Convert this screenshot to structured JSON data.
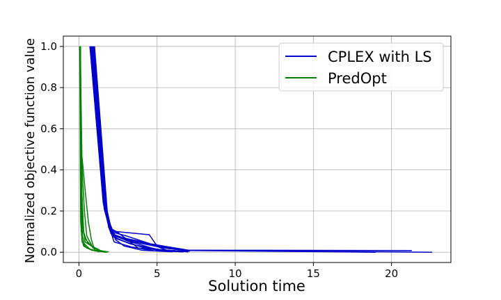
{
  "chart_data": {
    "type": "line",
    "title": "",
    "xlabel": "Solution time",
    "ylabel": "Normalized objective function value",
    "xlim": [
      -1.0,
      23.8
    ],
    "ylim": [
      -0.05,
      1.05
    ],
    "xticks": [
      0,
      5,
      10,
      15,
      20
    ],
    "yticks": [
      0.0,
      0.2,
      0.4,
      0.6,
      0.8,
      1.0
    ],
    "xtick_labels": [
      "0",
      "5",
      "10",
      "15",
      "20"
    ],
    "ytick_labels": [
      "0.0",
      "0.2",
      "0.4",
      "0.6",
      "0.8",
      "1.0"
    ],
    "grid": true,
    "legend_position": "top-right",
    "series": [
      {
        "name": "CPLEX with LS",
        "color": "#0000cc",
        "runs": [
          [
            [
              0.75,
              1.0
            ],
            [
              1.6,
              0.28
            ],
            [
              1.9,
              0.12
            ],
            [
              2.4,
              0.1
            ],
            [
              4.5,
              0.085
            ],
            [
              5.0,
              0.03
            ],
            [
              6.8,
              0.01
            ],
            [
              22.6,
              0.0
            ]
          ],
          [
            [
              0.8,
              1.0
            ],
            [
              1.65,
              0.25
            ],
            [
              2.0,
              0.1
            ],
            [
              3.0,
              0.08
            ],
            [
              4.6,
              0.04
            ],
            [
              7.0,
              0.01
            ],
            [
              21.3,
              0.008
            ]
          ],
          [
            [
              0.85,
              1.0
            ],
            [
              1.7,
              0.22
            ],
            [
              2.1,
              0.09
            ],
            [
              3.2,
              0.06
            ],
            [
              5.1,
              0.03
            ],
            [
              7.0,
              0.008
            ],
            [
              19.0,
              0.0
            ]
          ],
          [
            [
              0.9,
              1.0
            ],
            [
              1.75,
              0.2
            ],
            [
              2.2,
              0.08
            ],
            [
              3.5,
              0.05
            ],
            [
              5.5,
              0.02
            ],
            [
              7.1,
              0.005
            ]
          ],
          [
            [
              0.95,
              1.0
            ],
            [
              1.8,
              0.18
            ],
            [
              2.3,
              0.07
            ],
            [
              3.3,
              0.04
            ],
            [
              5.0,
              0.01
            ],
            [
              6.9,
              0.004
            ]
          ],
          [
            [
              1.0,
              1.0
            ],
            [
              1.85,
              0.16
            ],
            [
              2.4,
              0.065
            ],
            [
              3.6,
              0.035
            ],
            [
              5.2,
              0.012
            ],
            [
              7.0,
              0.002
            ]
          ],
          [
            [
              0.7,
              1.0
            ],
            [
              1.55,
              0.24
            ],
            [
              1.95,
              0.11
            ],
            [
              2.5,
              0.095
            ],
            [
              3.8,
              0.02
            ],
            [
              6.5,
              0.003
            ]
          ],
          [
            [
              0.82,
              1.0
            ],
            [
              1.7,
              0.19
            ],
            [
              2.2,
              0.075
            ],
            [
              3.0,
              0.05
            ],
            [
              4.3,
              0.018
            ],
            [
              6.8,
              0.003
            ]
          ],
          [
            [
              0.88,
              1.0
            ],
            [
              1.78,
              0.17
            ],
            [
              2.35,
              0.06
            ],
            [
              2.9,
              0.03
            ],
            [
              4.0,
              0.01
            ],
            [
              6.0,
              0.002
            ]
          ],
          [
            [
              0.93,
              1.0
            ],
            [
              1.82,
              0.15
            ],
            [
              2.25,
              0.05
            ],
            [
              3.4,
              0.025
            ],
            [
              4.8,
              0.007
            ],
            [
              6.7,
              0.002
            ]
          ],
          [
            [
              0.78,
              1.0
            ],
            [
              1.62,
              0.21
            ],
            [
              2.05,
              0.09
            ],
            [
              2.8,
              0.07
            ],
            [
              4.4,
              0.045
            ],
            [
              5.6,
              0.01
            ],
            [
              7.0,
              0.002
            ]
          ],
          [
            [
              0.86,
              1.0
            ],
            [
              1.72,
              0.23
            ],
            [
              2.15,
              0.085
            ],
            [
              3.1,
              0.055
            ],
            [
              4.9,
              0.015
            ],
            [
              6.6,
              0.001
            ]
          ]
        ]
      },
      {
        "name": "PredOpt",
        "color": "#008000",
        "runs": [
          [
            [
              0.05,
              1.0
            ],
            [
              0.15,
              0.5
            ],
            [
              0.4,
              0.3
            ],
            [
              0.6,
              0.15
            ],
            [
              0.8,
              0.06
            ],
            [
              1.0,
              0.01
            ],
            [
              1.8,
              0.0
            ]
          ],
          [
            [
              0.08,
              1.0
            ],
            [
              0.2,
              0.4
            ],
            [
              0.35,
              0.2
            ],
            [
              0.5,
              0.08
            ],
            [
              0.9,
              0.02
            ],
            [
              1.6,
              0.002
            ]
          ],
          [
            [
              0.1,
              1.0
            ],
            [
              0.12,
              0.45
            ],
            [
              0.25,
              0.12
            ],
            [
              0.4,
              0.05
            ],
            [
              1.2,
              0.01
            ],
            [
              1.9,
              0.001
            ]
          ],
          [
            [
              0.06,
              1.0
            ],
            [
              0.18,
              0.3
            ],
            [
              0.3,
              0.1
            ],
            [
              0.45,
              0.06
            ],
            [
              0.8,
              0.03
            ],
            [
              1.5,
              0.004
            ]
          ],
          [
            [
              0.07,
              1.0
            ],
            [
              0.1,
              0.35
            ],
            [
              0.2,
              0.15
            ],
            [
              0.3,
              0.09
            ],
            [
              0.6,
              0.04
            ],
            [
              1.4,
              0.005
            ]
          ],
          [
            [
              0.09,
              1.0
            ],
            [
              0.14,
              0.25
            ],
            [
              0.22,
              0.08
            ],
            [
              0.35,
              0.04
            ],
            [
              0.7,
              0.015
            ],
            [
              1.3,
              0.002
            ]
          ],
          [
            [
              0.1,
              1.0
            ],
            [
              0.13,
              0.2
            ],
            [
              0.2,
              0.06
            ],
            [
              0.3,
              0.03
            ],
            [
              0.8,
              0.01
            ],
            [
              1.7,
              0.0
            ]
          ],
          [
            [
              0.05,
              1.0
            ],
            [
              0.11,
              0.15
            ],
            [
              0.2,
              0.05
            ],
            [
              0.5,
              0.02
            ],
            [
              1.1,
              0.005
            ]
          ]
        ]
      }
    ]
  }
}
